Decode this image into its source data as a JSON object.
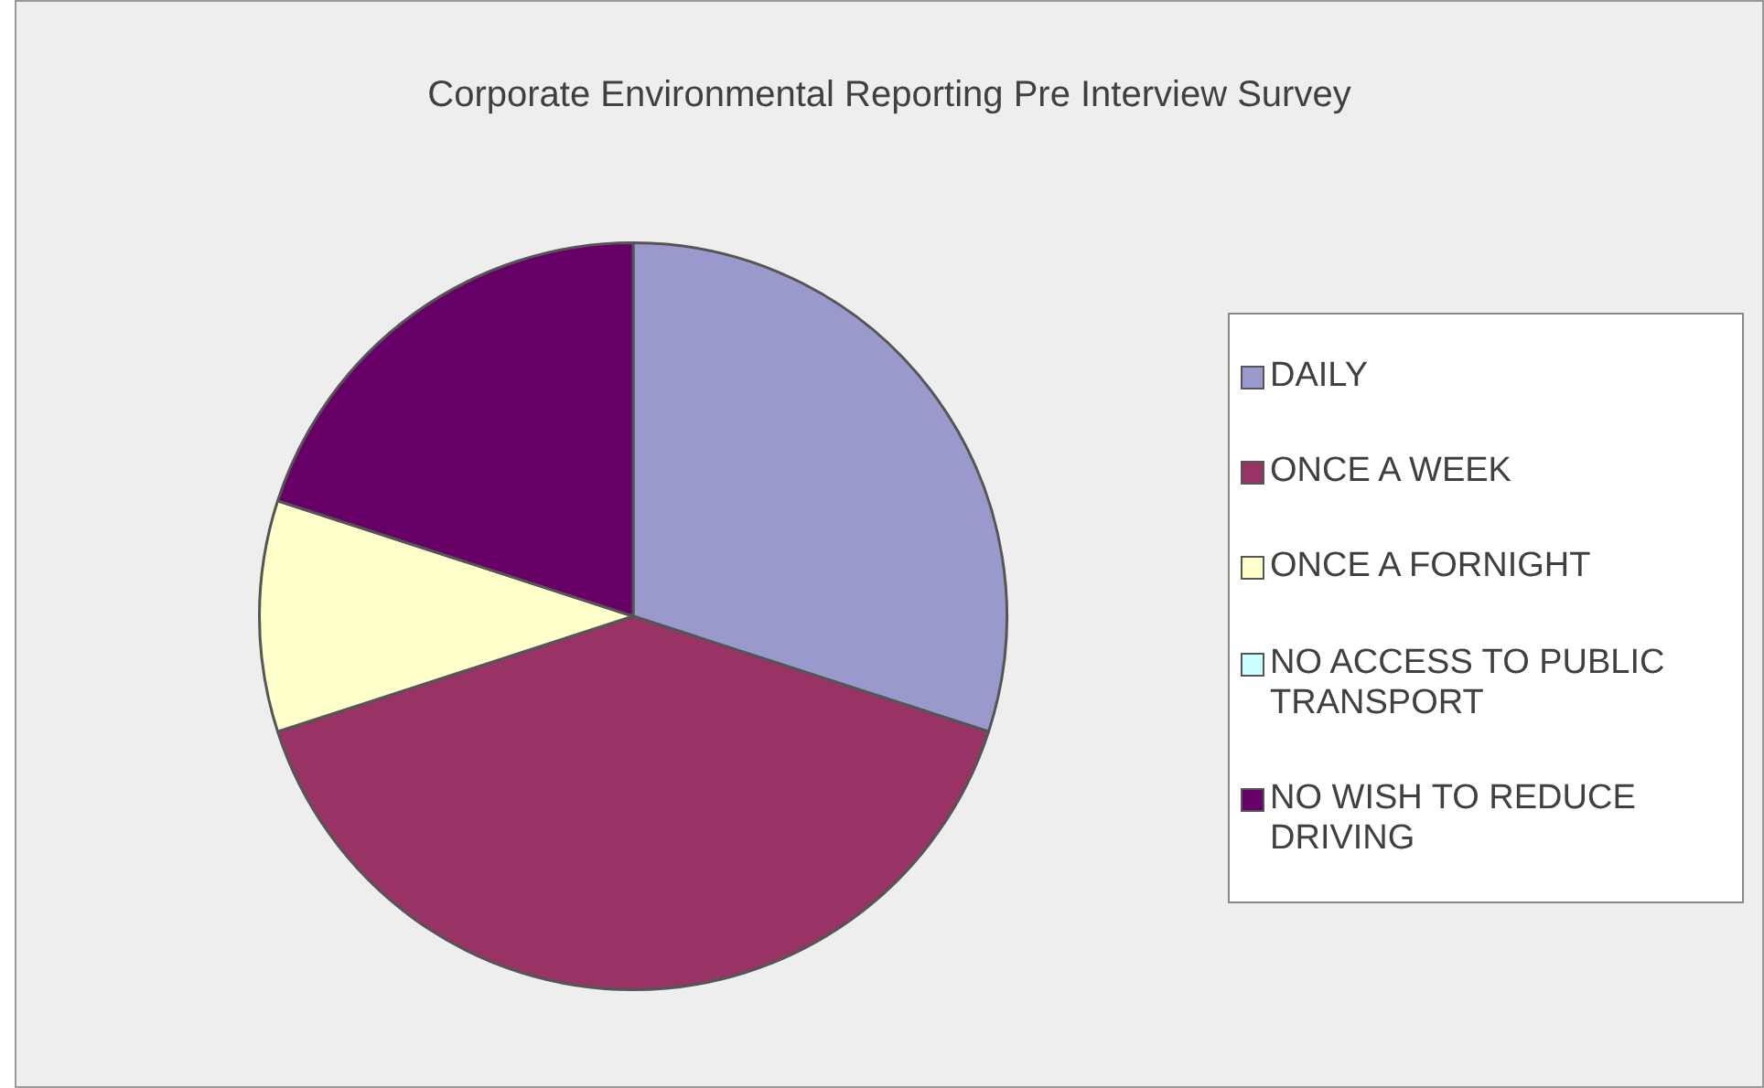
{
  "chart_data": {
    "type": "pie",
    "title": "Corporate Environmental Reporting Pre Interview Survey",
    "categories": [
      "DAILY",
      "ONCE A WEEK",
      "ONCE A FORNIGHT",
      "NO ACCESS TO PUBLIC TRANSPORT",
      "NO WISH TO REDUCE DRIVING"
    ],
    "values": [
      30,
      40,
      10,
      0,
      20
    ],
    "colors": [
      "#9999cc",
      "#993366",
      "#ffffcc",
      "#ccffff",
      "#660066"
    ],
    "legend": "right"
  }
}
